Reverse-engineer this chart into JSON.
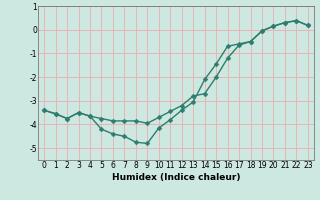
{
  "xlabel": "Humidex (Indice chaleur)",
  "background_color": "#cce8e0",
  "grid_color": "#e8b4b4",
  "line_color": "#2e7d6e",
  "xlim": [
    -0.5,
    23.5
  ],
  "ylim": [
    -5.5,
    0.7
  ],
  "yticks": [
    1,
    0,
    -1,
    -2,
    -3,
    -4,
    -5
  ],
  "xticks": [
    0,
    1,
    2,
    3,
    4,
    5,
    6,
    7,
    8,
    9,
    10,
    11,
    12,
    13,
    14,
    15,
    16,
    17,
    18,
    19,
    20,
    21,
    22,
    23
  ],
  "line1_x": [
    0,
    1,
    2,
    3,
    4,
    5,
    6,
    7,
    8,
    9,
    10,
    11,
    12,
    13,
    14,
    15,
    16,
    17,
    18,
    19,
    20,
    21,
    22,
    23
  ],
  "line1_y": [
    -3.4,
    -3.55,
    -3.75,
    -3.5,
    -3.65,
    -3.75,
    -3.85,
    -3.85,
    -3.85,
    -3.95,
    -3.7,
    -3.45,
    -3.2,
    -2.8,
    -2.7,
    -2.0,
    -1.2,
    -0.65,
    -0.5,
    -0.05,
    0.15,
    0.3,
    0.38,
    0.18
  ],
  "line2_x": [
    0,
    1,
    2,
    3,
    4,
    5,
    6,
    7,
    8,
    9,
    10,
    11,
    12,
    13,
    14,
    15,
    16,
    17,
    18,
    19,
    20,
    21,
    22,
    23
  ],
  "line2_y": [
    -3.4,
    -3.55,
    -3.75,
    -3.5,
    -3.65,
    -4.2,
    -4.4,
    -4.5,
    -4.75,
    -4.8,
    -4.15,
    -3.8,
    -3.4,
    -3.05,
    -2.1,
    -1.45,
    -0.7,
    -0.6,
    -0.5,
    -0.05,
    0.15,
    0.3,
    0.38,
    0.18
  ],
  "marker_size": 2.5,
  "line_width": 1.0,
  "tick_fontsize": 5.5,
  "xlabel_fontsize": 6.5
}
